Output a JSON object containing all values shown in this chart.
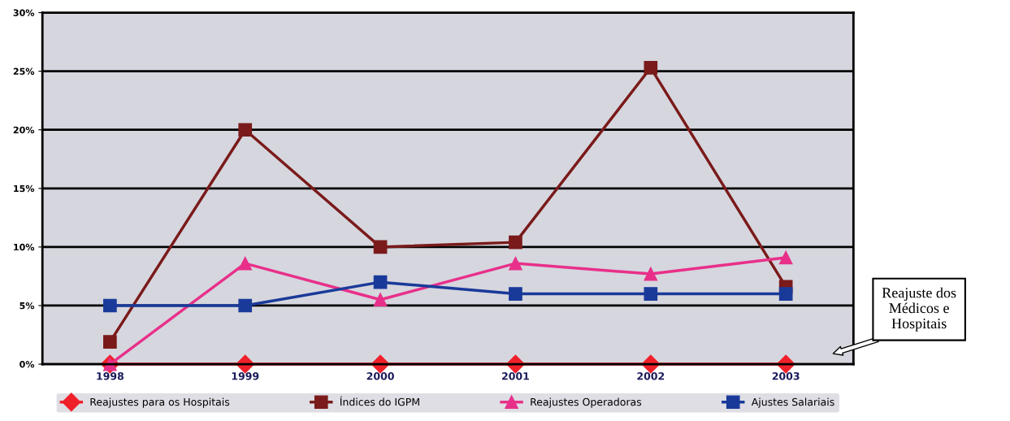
{
  "chart_data": {
    "type": "line",
    "categories": [
      "1998",
      "1999",
      "2000",
      "2001",
      "2002",
      "2003"
    ],
    "series": [
      {
        "name": "Reajustes para os Hospitais",
        "color": "#f0202a",
        "marker": "diamond",
        "values": [
          0,
          0,
          0,
          0,
          0,
          0
        ]
      },
      {
        "name": "Índices do IGPM",
        "color": "#7a1a1a",
        "marker": "square",
        "values": [
          1.9,
          20.0,
          10.0,
          10.4,
          25.3,
          6.6
        ]
      },
      {
        "name": "Reajustes Operadoras",
        "color": "#e8308a",
        "marker": "triangle",
        "values": [
          0,
          8.6,
          5.5,
          8.6,
          7.7,
          9.1
        ]
      },
      {
        "name": "Ajustes Salariais",
        "color": "#1a3a9a",
        "marker": "square",
        "values": [
          5,
          5,
          7.0,
          6.0,
          6.0,
          6.0
        ]
      }
    ],
    "ylim": [
      0,
      30
    ],
    "yticks": [
      {
        "value": 0,
        "label": "0%"
      },
      {
        "value": 5,
        "label": "5%"
      },
      {
        "value": 10,
        "label": "10%"
      },
      {
        "value": 15,
        "label": "15%"
      },
      {
        "value": 20,
        "label": "20%"
      },
      {
        "value": 25,
        "label": "25%"
      },
      {
        "value": 30,
        "label": "30%"
      }
    ],
    "grid": "y",
    "legend": "bottom",
    "line_style": "solid",
    "annotations": [
      "Reajuste dos\nMédicos e\nHospitais"
    ]
  }
}
